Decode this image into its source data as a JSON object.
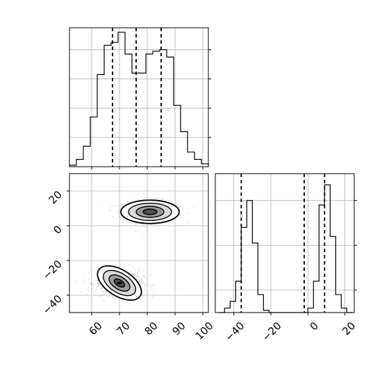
{
  "chart_data": {
    "type": "corner",
    "panels": [
      {
        "name": "hist-x",
        "type": "histogram",
        "xlim": [
          52,
          102
        ],
        "bin_edges": [
          52,
          54.5,
          57,
          59.5,
          62,
          64.5,
          67,
          69.5,
          72,
          74.5,
          77,
          79.5,
          82,
          84.5,
          87,
          89.5,
          92,
          94.5,
          97,
          99.5,
          102
        ],
        "counts": [
          0.01,
          0.05,
          0.14,
          0.34,
          0.63,
          0.83,
          0.85,
          0.92,
          0.77,
          0.64,
          0.64,
          0.77,
          0.79,
          0.8,
          0.75,
          0.42,
          0.24,
          0.1,
          0.05,
          0.02
        ],
        "quantiles": [
          67.5,
          76,
          85
        ],
        "grid": true
      },
      {
        "name": "scatter-xy",
        "type": "scatter+contour",
        "xlim": [
          52,
          102
        ],
        "ylim": [
          -50,
          30
        ],
        "clusters": [
          {
            "center": [
              81,
              8
            ],
            "spread": [
              5.0,
              3.2
            ],
            "n": 900
          },
          {
            "center": [
              70,
              -33
            ],
            "spread": [
              4.2,
              3.6
            ],
            "n": 900
          }
        ],
        "yticks": [
          -40,
          -20,
          0,
          20
        ],
        "grid": true
      },
      {
        "name": "hist-y",
        "type": "histogram",
        "xlim": [
          -50,
          25
        ],
        "bin_edges": [
          -48,
          -45,
          -42,
          -39,
          -36,
          -33,
          -30,
          -27,
          -24,
          -21,
          -18,
          -15,
          -12,
          -9,
          -6,
          -3,
          0,
          3,
          6,
          9,
          12,
          15,
          18,
          21,
          24
        ],
        "counts": [
          0.0,
          0.02,
          0.05,
          0.14,
          0.38,
          0.5,
          0.31,
          0.08,
          0.01,
          0.0,
          0.0,
          0.0,
          0.0,
          0.0,
          0.0,
          0.0,
          0.02,
          0.14,
          0.48,
          0.57,
          0.34,
          0.08,
          0.02,
          0.0
        ],
        "quantiles": [
          -36,
          -2,
          9
        ],
        "xticks": [
          -40,
          -20,
          0,
          20
        ],
        "grid": true
      }
    ],
    "x_tick_labels": [
      "60",
      "70",
      "80",
      "90",
      "100"
    ],
    "y_tick_labels": [
      "-40",
      "-20",
      "0",
      "20"
    ],
    "hist_y_tick_labels": [
      "-40",
      "-20",
      "0",
      "20"
    ]
  }
}
